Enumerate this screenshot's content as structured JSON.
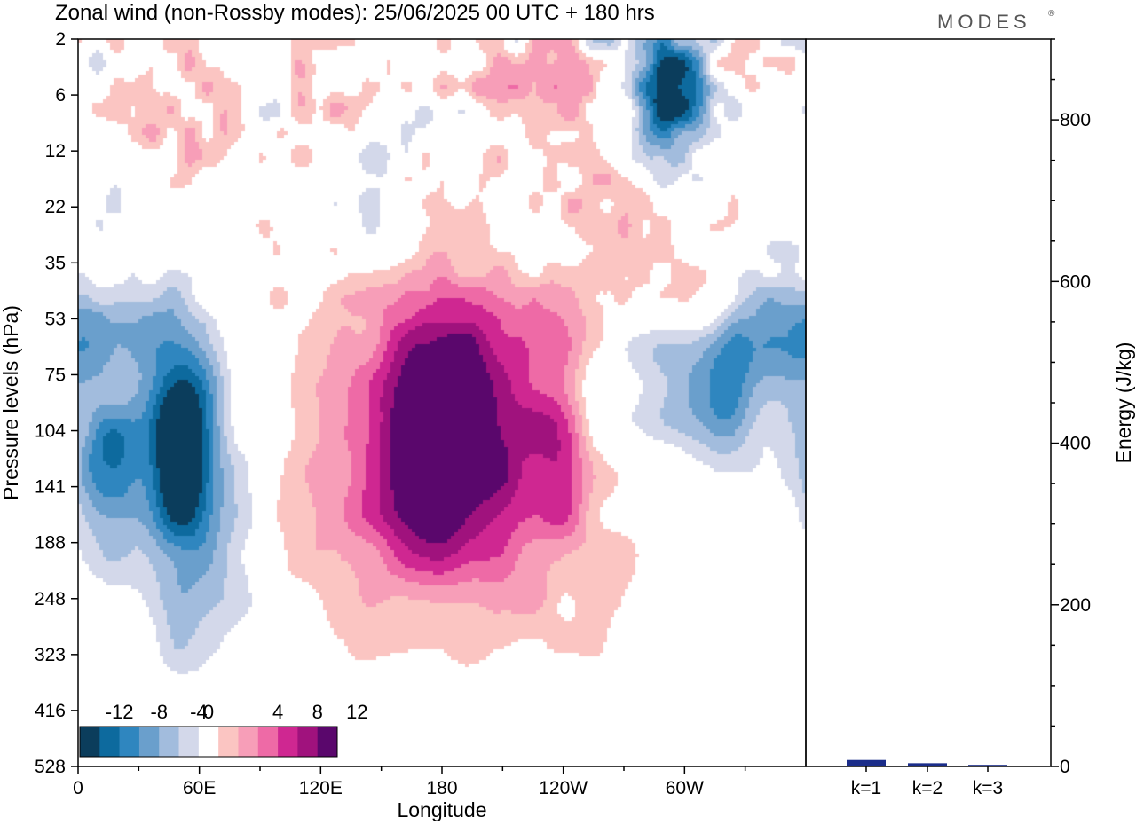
{
  "header": {
    "title": "Zonal wind (non-Rossby modes):  25/06/2025  00 UTC  + 180 hrs",
    "brand": "MODES",
    "brand_mark": "®"
  },
  "chart_data": [
    {
      "type": "heatmap",
      "xlabel": "Longitude",
      "ylabel": "Pressure levels (hPa)",
      "x_ticks": [
        "0",
        "60E",
        "120E",
        "180",
        "120W",
        "60W"
      ],
      "y_ticks": [
        "2",
        "6",
        "12",
        "22",
        "35",
        "53",
        "75",
        "104",
        "141",
        "188",
        "248",
        "323",
        "416",
        "528"
      ],
      "colorbar": {
        "labels": [
          "-12",
          "-8",
          "-4",
          "0",
          "4",
          "8",
          "12"
        ],
        "levels": [
          -14,
          -12,
          -10,
          -8,
          -6,
          -4,
          -2,
          2,
          4,
          6,
          8,
          10,
          12,
          14
        ],
        "colors": [
          "#0b3d5c",
          "#0d6a9e",
          "#2f86bf",
          "#6a9fcc",
          "#a2bcdd",
          "#d3d8ea",
          "#ffffff",
          "#fbc5c2",
          "#f79eb8",
          "#ee6aa6",
          "#cf2791",
          "#a0127d",
          "#5a076c"
        ]
      },
      "anomalies": [
        {
          "lon": 50,
          "lev": 7.2,
          "value": -15,
          "width": 12,
          "depth": 1.3
        },
        {
          "lon": 15,
          "lev": 7.1,
          "value": -12,
          "width": 12,
          "depth": 1.2
        },
        {
          "lon": 175,
          "lev": 7.3,
          "value": 13.5,
          "width": 22,
          "depth": 1.6
        },
        {
          "lon": 200,
          "lev": 7.0,
          "value": 5.5,
          "width": 38,
          "depth": 1.9
        },
        {
          "lon": 125,
          "lev": 8.6,
          "value": 3.5,
          "width": 22,
          "depth": 2.2
        },
        {
          "lon": 230,
          "lev": 8.2,
          "value": 3.2,
          "width": 28,
          "depth": 1.8
        },
        {
          "lon": 210,
          "lev": 5.2,
          "value": 2.8,
          "width": 60,
          "depth": 0.8
        },
        {
          "lon": 300,
          "lev": 6.0,
          "value": -7,
          "width": 28,
          "depth": 0.8
        },
        {
          "lon": 334,
          "lev": 5.3,
          "value": -5,
          "width": 15,
          "depth": 0.8
        },
        {
          "lon": 292,
          "lev": 0.8,
          "value": -8,
          "width": 15,
          "depth": 0.6
        },
        {
          "lon": 285,
          "lev": 1.2,
          "value": -5,
          "width": 25,
          "depth": 0.9
        },
        {
          "lon": 60,
          "lev": 9.5,
          "value": -4,
          "width": 22,
          "depth": 2.4
        },
        {
          "lon": 15,
          "lev": 6.4,
          "value": 6,
          "width": 10,
          "depth": 0.6
        },
        {
          "lon": 0,
          "lev": 5.4,
          "value": -5,
          "width": 12,
          "depth": 0.6
        },
        {
          "lon": 30,
          "lev": 5.0,
          "value": -4,
          "width": 16,
          "depth": 0.5
        },
        {
          "lon": 240,
          "lev": 0.9,
          "value": 5,
          "width": 25,
          "depth": 0.7
        },
        {
          "lon": 135,
          "lev": 1.0,
          "value": 4,
          "width": 10,
          "depth": 0.5
        },
        {
          "lon": 110,
          "lev": 1.1,
          "value": 3.3,
          "width": 8,
          "depth": 0.5
        },
        {
          "lon": 305,
          "lev": 4.7,
          "value": 3.2,
          "width": 12,
          "depth": 0.8
        },
        {
          "lon": 260,
          "lev": 2.6,
          "value": 3.0,
          "width": 20,
          "depth": 1.0
        },
        {
          "lon": 145,
          "lev": 2.0,
          "value": -2.6,
          "width": 10,
          "depth": 1.0
        },
        {
          "lon": 255,
          "lev": 6.9,
          "value": -4,
          "width": 10,
          "depth": 1.0
        },
        {
          "lon": 320,
          "lev": 6.8,
          "value": -4,
          "width": 8,
          "depth": 0.8
        },
        {
          "lon": 240,
          "lev": 7.3,
          "value": 3.5,
          "width": 16,
          "depth": 1.2
        },
        {
          "lon": 75,
          "lev": 12.4,
          "value": 3,
          "width": 18,
          "depth": 0.8
        },
        {
          "lon": 60,
          "lev": 1.5,
          "value": 2.8,
          "width": 16,
          "depth": 0.8
        },
        {
          "lon": 30,
          "lev": 1.2,
          "value": 4,
          "width": 8,
          "depth": 0.6
        },
        {
          "lon": 295,
          "lev": 0.5,
          "value": -4,
          "width": 8,
          "depth": 0.6
        },
        {
          "lon": 325,
          "lev": 0.3,
          "value": 4,
          "width": 12,
          "depth": 0.5
        }
      ]
    },
    {
      "type": "bar",
      "categories": [
        "k=1",
        "k=2",
        "k=3"
      ],
      "values": [
        8,
        4,
        2
      ],
      "ylabel": "Energy (J/kg)",
      "ylim": [
        0,
        900
      ],
      "y_ticks": [
        0,
        200,
        400,
        600,
        800
      ],
      "bar_color": "#1b2d8a"
    }
  ]
}
